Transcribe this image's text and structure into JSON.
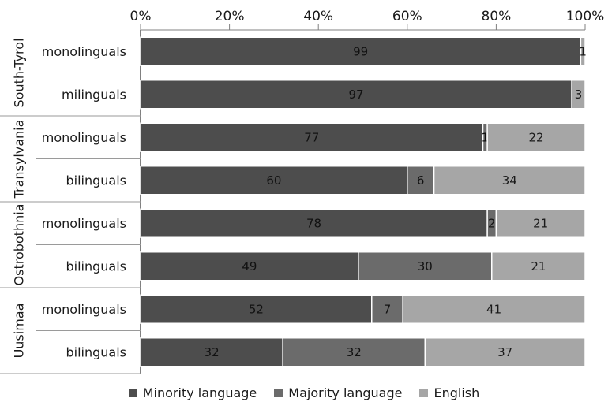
{
  "chart_data": {
    "type": "bar",
    "orientation": "horizontal",
    "stacked": true,
    "percent": true,
    "xlim": [
      0,
      100
    ],
    "x_ticks": [
      "0%",
      "20%",
      "40%",
      "60%",
      "80%",
      "100%"
    ],
    "groups": [
      {
        "name": "South-Tyrol",
        "rows": [
          {
            "label": "monolinguals",
            "values": [
              99,
              0,
              1
            ],
            "labels": [
              "99",
              "",
              "1"
            ]
          },
          {
            "label": "milinguals",
            "values": [
              97,
              0,
              3
            ],
            "labels": [
              "97",
              "",
              "3"
            ]
          }
        ]
      },
      {
        "name": "Transylvania",
        "rows": [
          {
            "label": "monolinguals",
            "values": [
              77,
              1,
              22
            ],
            "labels": [
              "77",
              "1",
              "22"
            ]
          },
          {
            "label": "bilinguals",
            "values": [
              60,
              6,
              34
            ],
            "labels": [
              "60",
              "6",
              "34"
            ]
          }
        ]
      },
      {
        "name": "Ostrobothnia",
        "rows": [
          {
            "label": "monolinguals",
            "values": [
              78,
              2,
              21
            ],
            "labels": [
              "78",
              "2",
              "21"
            ]
          },
          {
            "label": "bilinguals",
            "values": [
              49,
              30,
              21
            ],
            "labels": [
              "49",
              "30",
              "21"
            ]
          }
        ]
      },
      {
        "name": "Uusimaa",
        "rows": [
          {
            "label": "monolinguals",
            "values": [
              52,
              7,
              41
            ],
            "labels": [
              "52",
              "7",
              "41"
            ]
          },
          {
            "label": "bilinguals",
            "values": [
              32,
              32,
              37
            ],
            "labels": [
              "32",
              "32",
              "37"
            ]
          }
        ]
      }
    ],
    "series": [
      {
        "name": "Minority language",
        "color": "#4d4d4d"
      },
      {
        "name": "Majority language",
        "color": "#6b6b6b"
      },
      {
        "name": "English",
        "color": "#a6a6a6"
      }
    ],
    "legend_position": "bottom",
    "grid": false
  }
}
